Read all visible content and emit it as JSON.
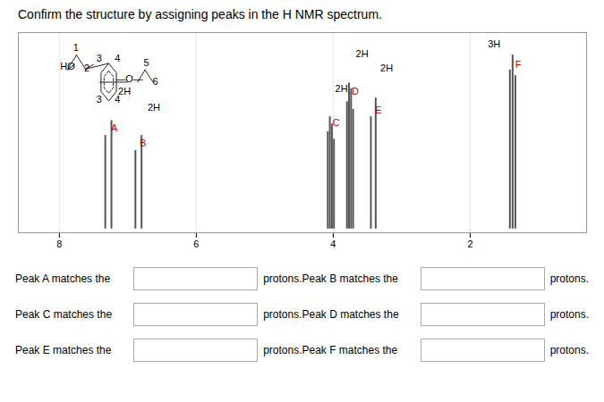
{
  "chart_data": {
    "type": "bar",
    "title": "Confirm the structure by assigning peaks in the H NMR spectrum.",
    "x": [
      7.33,
      7.24,
      6.89,
      6.8,
      4.08,
      4.05,
      4.02,
      3.99,
      3.8,
      3.77,
      3.74,
      3.71,
      3.45,
      3.38,
      1.42,
      1.38,
      1.34
    ],
    "values": [
      0.5,
      0.58,
      0.42,
      0.5,
      0.52,
      0.6,
      0.56,
      0.48,
      0.68,
      0.78,
      0.75,
      0.64,
      0.6,
      0.7,
      0.85,
      0.93,
      0.82
    ],
    "color": "#555555",
    "xlim": [
      8.6,
      0.3
    ],
    "ylim": [
      -0.02,
      1.05
    ],
    "xticks": [
      8,
      6,
      4,
      2
    ],
    "grid": true,
    "tick_labels": "x",
    "annotations": [
      {
        "text": "A",
        "x": 7.2,
        "y": 0.52,
        "color": "#cc0000"
      },
      {
        "text": "2H",
        "x": 7.05,
        "y": 0.72,
        "color": "#000000"
      },
      {
        "text": "B",
        "x": 6.78,
        "y": 0.44,
        "color": "#cc0000"
      },
      {
        "text": "2H",
        "x": 6.62,
        "y": 0.63,
        "color": "#000000"
      },
      {
        "text": "C",
        "x": 3.96,
        "y": 0.55,
        "color": "#cc0000"
      },
      {
        "text": "2H",
        "x": 3.88,
        "y": 0.73,
        "color": "#000000"
      },
      {
        "text": "D",
        "x": 3.68,
        "y": 0.72,
        "color": "#cc0000"
      },
      {
        "text": "2H",
        "x": 3.58,
        "y": 0.92,
        "color": "#000000"
      },
      {
        "text": "E",
        "x": 3.34,
        "y": 0.62,
        "color": "#cc0000"
      },
      {
        "text": "2H",
        "x": 3.22,
        "y": 0.84,
        "color": "#000000"
      },
      {
        "text": "F",
        "x": 1.3,
        "y": 0.86,
        "color": "#cc0000"
      },
      {
        "text": "3H",
        "x": 1.65,
        "y": 0.97,
        "color": "#000000"
      },
      {
        "text": "HO",
        "x": 7.88,
        "y": 0.85,
        "color": "#000000"
      },
      {
        "text": "1",
        "x": 7.76,
        "y": 0.95,
        "color": "#000000"
      },
      {
        "text": "2",
        "x": 7.6,
        "y": 0.84,
        "color": "#000000"
      },
      {
        "text": "3",
        "x": 7.42,
        "y": 0.895,
        "color": "#000000"
      },
      {
        "text": "4",
        "x": 7.15,
        "y": 0.895,
        "color": "#000000"
      },
      {
        "text": "3",
        "x": 7.42,
        "y": 0.675,
        "color": "#000000"
      },
      {
        "text": "4",
        "x": 7.15,
        "y": 0.675,
        "color": "#000000"
      },
      {
        "text": "—O—",
        "x": 6.98,
        "y": 0.785,
        "color": "#000000"
      },
      {
        "text": "5",
        "x": 6.73,
        "y": 0.87,
        "color": "#000000"
      },
      {
        "text": "6",
        "x": 6.6,
        "y": 0.77,
        "color": "#000000"
      },
      {
        "x": [
          7.88,
          7.78
        ],
        "y": [
          0.85,
          0.88
        ],
        "color": "#000000",
        "line_style": "solid"
      },
      {
        "x": [
          7.88,
          7.75
        ],
        "y": [
          0.855,
          0.93
        ],
        "color": "#222222",
        "line_style": "solid"
      },
      {
        "x": [
          7.75,
          7.62
        ],
        "y": [
          0.93,
          0.855
        ],
        "color": "#222222",
        "line_style": "solid"
      },
      {
        "x": [
          7.62,
          7.5
        ],
        "y": [
          0.855,
          0.88
        ],
        "color": "#222222",
        "line_style": "solid"
      },
      {
        "x": [
          7.28,
          7.16742,
          7.16742,
          7.28,
          7.39258,
          7.39258,
          7.28
        ],
        "y": [
          0.885,
          0.835,
          0.735,
          0.685,
          0.735,
          0.835,
          0.885
        ],
        "color": "#222222",
        "line_style": "solid"
      },
      {
        "x": [
          7.28,
          7.212452,
          7.212452,
          7.28,
          7.347548,
          7.347548,
          7.28
        ],
        "y": [
          0.845,
          0.815,
          0.755,
          0.725,
          0.755,
          0.815,
          0.845
        ],
        "color": "#222222",
        "line_style": "dashed"
      },
      {
        "x": [
          7.62,
          7.28
        ],
        "y": [
          0.855,
          0.885
        ],
        "color": "#222222",
        "line_style": "solid"
      },
      {
        "x": [
          7.41,
          7.01
        ],
        "y": [
          0.785,
          0.785
        ],
        "color": "#222222",
        "line_style": "solid"
      },
      {
        "x": [
          6.86,
          6.75
        ],
        "y": [
          0.785,
          0.85
        ],
        "color": "#222222",
        "line_style": "solid"
      },
      {
        "x": [
          6.75,
          6.63
        ],
        "y": [
          0.85,
          0.785
        ],
        "color": "#222222",
        "line_style": "solid"
      }
    ],
    "form_rows": [
      {
        "left_label": "Peak A matches the",
        "right_label": "Peak B matches the"
      },
      {
        "left_label": "Peak C matches the",
        "right_label": "Peak D matches the"
      },
      {
        "left_label": "Peak E matches the",
        "right_label": "Peak F matches the"
      }
    ],
    "form_text": "protons."
  }
}
